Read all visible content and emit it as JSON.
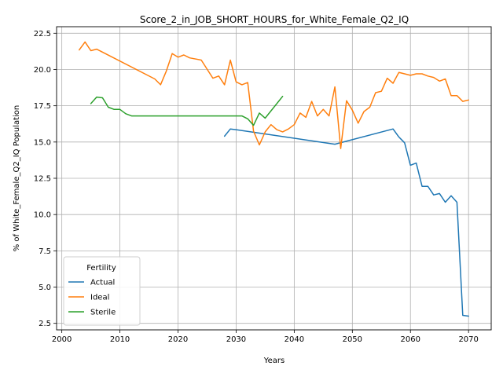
{
  "chart_data": {
    "type": "line",
    "title": "Score_2_in_JOB_SHORT_HOURS_for_White_Female_Q2_IQ",
    "xlabel": "Years",
    "ylabel": "% of White_Female_Q2_IQ Population",
    "xlim": [
      1999.1,
      2073.9
    ],
    "ylim": [
      2.05,
      22.95
    ],
    "grid": true,
    "xticks": [
      2000,
      2010,
      2020,
      2030,
      2040,
      2050,
      2060,
      2070
    ],
    "yticks": [
      2.5,
      5.0,
      7.5,
      10.0,
      12.5,
      15.0,
      17.5,
      20.0,
      22.5
    ],
    "xtick_labels": [
      "2000",
      "2010",
      "2020",
      "2030",
      "2040",
      "2050",
      "2060",
      "2070"
    ],
    "ytick_labels": [
      "2.5",
      "5.0",
      "7.5",
      "10.0",
      "12.5",
      "15.0",
      "17.5",
      "20.0",
      "22.5"
    ],
    "legend": {
      "title": "Fertility",
      "position": "lower-left"
    },
    "series": [
      {
        "name": "Actual",
        "color": "#1f77b4",
        "x": [
          2028,
          2029,
          2030,
          2047,
          2057,
          2058,
          2059,
          2060,
          2061,
          2062,
          2063,
          2064,
          2065,
          2066,
          2067,
          2068,
          2069,
          2070
        ],
        "y": [
          15.4,
          15.9,
          15.85,
          14.85,
          15.9,
          15.35,
          14.95,
          13.4,
          13.55,
          11.95,
          11.95,
          11.35,
          11.45,
          10.85,
          11.3,
          10.85,
          3.05,
          3.0
        ]
      },
      {
        "name": "Ideal",
        "color": "#ff7f0e",
        "x": [
          2003,
          2004,
          2005,
          2006,
          2016,
          2017,
          2018,
          2019,
          2020,
          2021,
          2022,
          2024,
          2026,
          2027,
          2028,
          2029,
          2030,
          2031,
          2032,
          2033,
          2034,
          2035,
          2036,
          2037,
          2038,
          2039,
          2040,
          2041,
          2042,
          2043,
          2044,
          2045,
          2046,
          2047,
          2048,
          2049,
          2050,
          2051,
          2052,
          2053,
          2054,
          2055,
          2056,
          2057,
          2058,
          2059,
          2060,
          2061,
          2062,
          2063,
          2064,
          2065,
          2066,
          2067,
          2068,
          2069,
          2070
        ],
        "y": [
          21.35,
          21.9,
          21.3,
          21.4,
          19.35,
          18.95,
          19.9,
          21.1,
          20.85,
          21.0,
          20.8,
          20.65,
          19.4,
          19.55,
          18.95,
          20.65,
          19.15,
          18.95,
          19.1,
          15.75,
          14.8,
          15.7,
          16.2,
          15.85,
          15.7,
          15.9,
          16.2,
          17.0,
          16.7,
          17.8,
          16.8,
          17.25,
          16.8,
          18.8,
          14.55,
          17.85,
          17.2,
          16.3,
          17.1,
          17.4,
          18.4,
          18.5,
          19.4,
          19.05,
          19.8,
          19.7,
          19.6,
          19.7,
          19.7,
          19.55,
          19.45,
          19.2,
          19.35,
          18.2,
          18.2,
          17.8,
          17.9
        ]
      },
      {
        "name": "Sterile",
        "color": "#2ca02c",
        "x": [
          2005,
          2006,
          2007,
          2008,
          2009,
          2010,
          2011,
          2012,
          2031,
          2032,
          2033,
          2034,
          2035,
          2038
        ],
        "y": [
          17.65,
          18.1,
          18.05,
          17.4,
          17.25,
          17.25,
          16.95,
          16.8,
          16.8,
          16.6,
          16.15,
          17.0,
          16.65,
          18.15
        ]
      }
    ]
  }
}
